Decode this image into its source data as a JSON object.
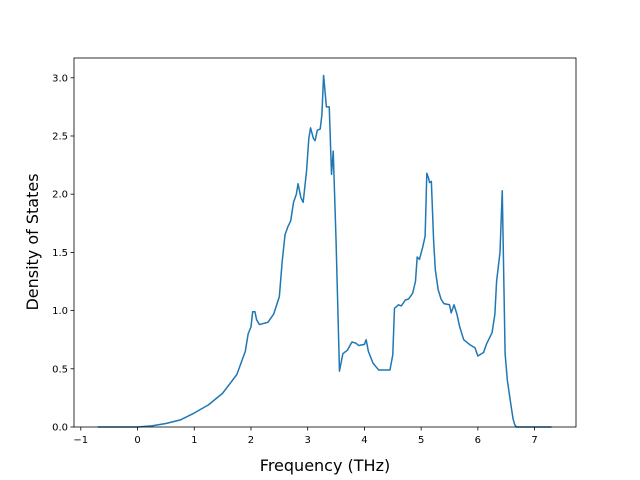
{
  "chart_data": {
    "type": "line",
    "x_label": "Frequency (THz)",
    "y_label": "Density of States",
    "color": "#1f77b4",
    "x": [
      -0.7,
      0,
      0.25,
      0.5,
      0.75,
      1.0,
      1.25,
      1.5,
      1.75,
      1.9,
      1.95,
      2.0,
      2.03,
      2.07,
      2.1,
      2.15,
      2.3,
      2.4,
      2.5,
      2.55,
      2.6,
      2.65,
      2.7,
      2.75,
      2.8,
      2.83,
      2.88,
      2.92,
      2.98,
      3.02,
      3.05,
      3.1,
      3.13,
      3.17,
      3.22,
      3.25,
      3.28,
      3.33,
      3.38,
      3.42,
      3.45,
      3.5,
      3.56,
      3.62,
      3.7,
      3.78,
      3.85,
      3.9,
      4.0,
      4.03,
      4.07,
      4.15,
      4.25,
      4.45,
      4.5,
      4.53,
      4.6,
      4.65,
      4.72,
      4.78,
      4.85,
      4.9,
      4.93,
      4.97,
      5.03,
      5.07,
      5.1,
      5.13,
      5.15,
      5.18,
      5.22,
      5.25,
      5.3,
      5.35,
      5.4,
      5.5,
      5.53,
      5.58,
      5.63,
      5.68,
      5.75,
      5.85,
      5.95,
      6.0,
      6.1,
      6.15,
      6.25,
      6.3,
      6.33,
      6.39,
      6.43,
      6.48,
      6.52,
      6.58,
      6.62,
      6.65,
      6.68,
      7.3
    ],
    "values": [
      0,
      0,
      0.01,
      0.03,
      0.06,
      0.12,
      0.19,
      0.29,
      0.45,
      0.65,
      0.8,
      0.86,
      0.99,
      0.99,
      0.92,
      0.88,
      0.9,
      0.97,
      1.12,
      1.42,
      1.65,
      1.72,
      1.77,
      1.93,
      2.0,
      2.09,
      1.97,
      1.93,
      2.2,
      2.48,
      2.57,
      2.48,
      2.46,
      2.55,
      2.56,
      2.68,
      3.02,
      2.75,
      2.75,
      2.17,
      2.37,
      1.6,
      0.48,
      0.63,
      0.66,
      0.73,
      0.72,
      0.7,
      0.71,
      0.75,
      0.65,
      0.55,
      0.49,
      0.49,
      0.62,
      1.02,
      1.05,
      1.04,
      1.09,
      1.1,
      1.15,
      1.25,
      1.46,
      1.44,
      1.55,
      1.64,
      2.18,
      2.14,
      2.1,
      2.11,
      1.6,
      1.35,
      1.18,
      1.1,
      1.06,
      1.05,
      0.98,
      1.05,
      0.97,
      0.86,
      0.75,
      0.71,
      0.68,
      0.61,
      0.64,
      0.71,
      0.81,
      0.97,
      1.25,
      1.5,
      2.03,
      0.63,
      0.4,
      0.2,
      0.07,
      0.02,
      0,
      0
    ],
    "xlim": [
      -1.12,
      7.73
    ],
    "ylim": [
      0,
      3.17
    ],
    "xticks": [
      {
        "value": -1,
        "label": "−1"
      },
      0,
      1,
      2,
      3,
      4,
      5,
      6,
      7
    ],
    "yticks": [
      {
        "value": 0,
        "label": "0.0"
      },
      0.5,
      {
        "value": 1,
        "label": "1.0"
      },
      1.5,
      {
        "value": 2,
        "label": "2.0"
      },
      2.5,
      {
        "value": 3,
        "label": "3.0"
      }
    ]
  }
}
